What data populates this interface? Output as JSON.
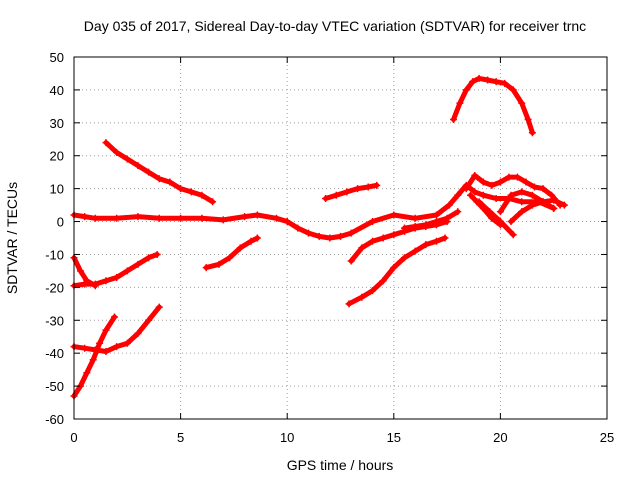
{
  "chart_data": {
    "type": "scatter",
    "title": "Day 035 of 2017, Sidereal Day-to-day VTEC variation (SDTVAR) for receiver trnc",
    "xlabel": "GPS time / hours",
    "ylabel": "SDTVAR / TECUs",
    "xlim": [
      0,
      25
    ],
    "ylim": [
      -60,
      50
    ],
    "x_ticks": [
      0,
      5,
      10,
      15,
      20,
      25
    ],
    "y_ticks": [
      -60,
      -50,
      -40,
      -30,
      -20,
      -10,
      0,
      10,
      20,
      30,
      40,
      50
    ],
    "grid": true,
    "series_color": "#ff0000",
    "series": [
      {
        "x": [
          0.0,
          0.5,
          1.0,
          2.0,
          3.0,
          4.0,
          5.0,
          6.0,
          7.0,
          8.0,
          8.6,
          9.5,
          10.0,
          10.5,
          11.0,
          11.5,
          12.0,
          12.5,
          13.0,
          14.0,
          15.0,
          16.0,
          17.0,
          17.6,
          18.0,
          18.4,
          18.8,
          19.2,
          19.8,
          20.4,
          21.0,
          21.8,
          22.5
        ],
        "y": [
          2,
          1.5,
          1,
          1,
          1.5,
          1,
          1,
          1,
          0.5,
          1.5,
          2,
          1,
          0,
          -2,
          -3.5,
          -4.5,
          -5,
          -4.5,
          -3.5,
          0,
          2,
          1,
          2,
          5,
          8,
          11,
          9,
          8,
          7,
          7,
          6,
          6,
          4
        ]
      },
      {
        "x": [
          1.5,
          2.0,
          2.5,
          3.0,
          3.5,
          4.0,
          4.5,
          5.0,
          5.5,
          6.0,
          6.5
        ],
        "y": [
          24,
          21,
          19,
          17,
          15,
          13,
          12,
          10,
          9,
          8,
          6
        ]
      },
      {
        "x": [
          0.0,
          0.3,
          0.6,
          1.0
        ],
        "y": [
          -11,
          -15,
          -18,
          -19.5
        ]
      },
      {
        "x": [
          0.0,
          0.5,
          1.0,
          1.5,
          2.0,
          2.5,
          3.0,
          3.5,
          3.9
        ],
        "y": [
          -19.5,
          -19,
          -19,
          -18,
          -17,
          -15,
          -13,
          -11,
          -10
        ]
      },
      {
        "x": [
          0.0,
          0.5,
          1.0,
          1.5,
          2.0,
          2.5,
          3.0,
          3.5,
          4.0
        ],
        "y": [
          -38,
          -38.5,
          -39,
          -39.5,
          -38,
          -37,
          -34,
          -30,
          -26
        ]
      },
      {
        "x": [
          0.0,
          0.3,
          0.6,
          0.9,
          1.2,
          1.5,
          1.9
        ],
        "y": [
          -53,
          -50,
          -46,
          -42,
          -37,
          -33,
          -29
        ]
      },
      {
        "x": [
          6.2,
          6.8,
          7.3,
          7.8,
          8.3,
          8.6
        ],
        "y": [
          -14,
          -13,
          -11,
          -8,
          -6,
          -5
        ]
      },
      {
        "x": [
          11.8,
          12.3,
          12.8,
          13.3,
          13.8,
          14.2
        ],
        "y": [
          7,
          8,
          9,
          10,
          10.5,
          11
        ]
      },
      {
        "x": [
          13.0,
          13.5,
          14.0,
          14.5,
          15.0,
          15.5,
          16.0,
          16.5,
          17.0,
          17.5
        ],
        "y": [
          -12,
          -8,
          -6,
          -5,
          -4,
          -3,
          -2,
          -1.5,
          -1,
          0
        ]
      },
      {
        "x": [
          12.9,
          13.5,
          14.0,
          14.5,
          15.0,
          15.5,
          16.0,
          16.5,
          17.0,
          17.4
        ],
        "y": [
          -25,
          -23,
          -21,
          -18,
          -14,
          -11,
          -9,
          -7,
          -6,
          -5
        ]
      },
      {
        "x": [
          17.8,
          18.1,
          18.4,
          18.7,
          19.0,
          19.4,
          19.8,
          20.2,
          20.6,
          21.0,
          21.3,
          21.5
        ],
        "y": [
          31,
          36,
          40,
          42.5,
          43.5,
          43,
          42.5,
          42,
          40,
          36,
          31,
          27
        ]
      },
      {
        "x": [
          18.4,
          18.8,
          19.2,
          19.6,
          20.0,
          20.4,
          20.8,
          21.2,
          21.6,
          22.0,
          22.4,
          22.8
        ],
        "y": [
          10,
          14,
          12,
          11,
          12,
          13.5,
          13.5,
          12,
          10.5,
          10,
          8,
          5
        ]
      },
      {
        "x": [
          18.6,
          18.9,
          19.2,
          19.6,
          20.0
        ],
        "y": [
          8,
          6,
          4,
          1,
          -1
        ]
      },
      {
        "x": [
          19.0,
          19.5,
          20.0,
          20.6
        ],
        "y": [
          6,
          3,
          0,
          -4
        ]
      },
      {
        "x": [
          20.0,
          20.5,
          21.0,
          21.5,
          22.0,
          22.5
        ],
        "y": [
          3,
          8,
          9,
          8,
          6,
          4
        ]
      },
      {
        "x": [
          20.5,
          21.0,
          21.5,
          22.0,
          22.5,
          23.0
        ],
        "y": [
          0,
          3,
          5,
          6,
          6.5,
          5
        ]
      },
      {
        "x": [
          15.5,
          16.0,
          16.5,
          17.0,
          17.5,
          18.0
        ],
        "y": [
          -2,
          -1.5,
          -1,
          0,
          1,
          3
        ]
      }
    ]
  }
}
